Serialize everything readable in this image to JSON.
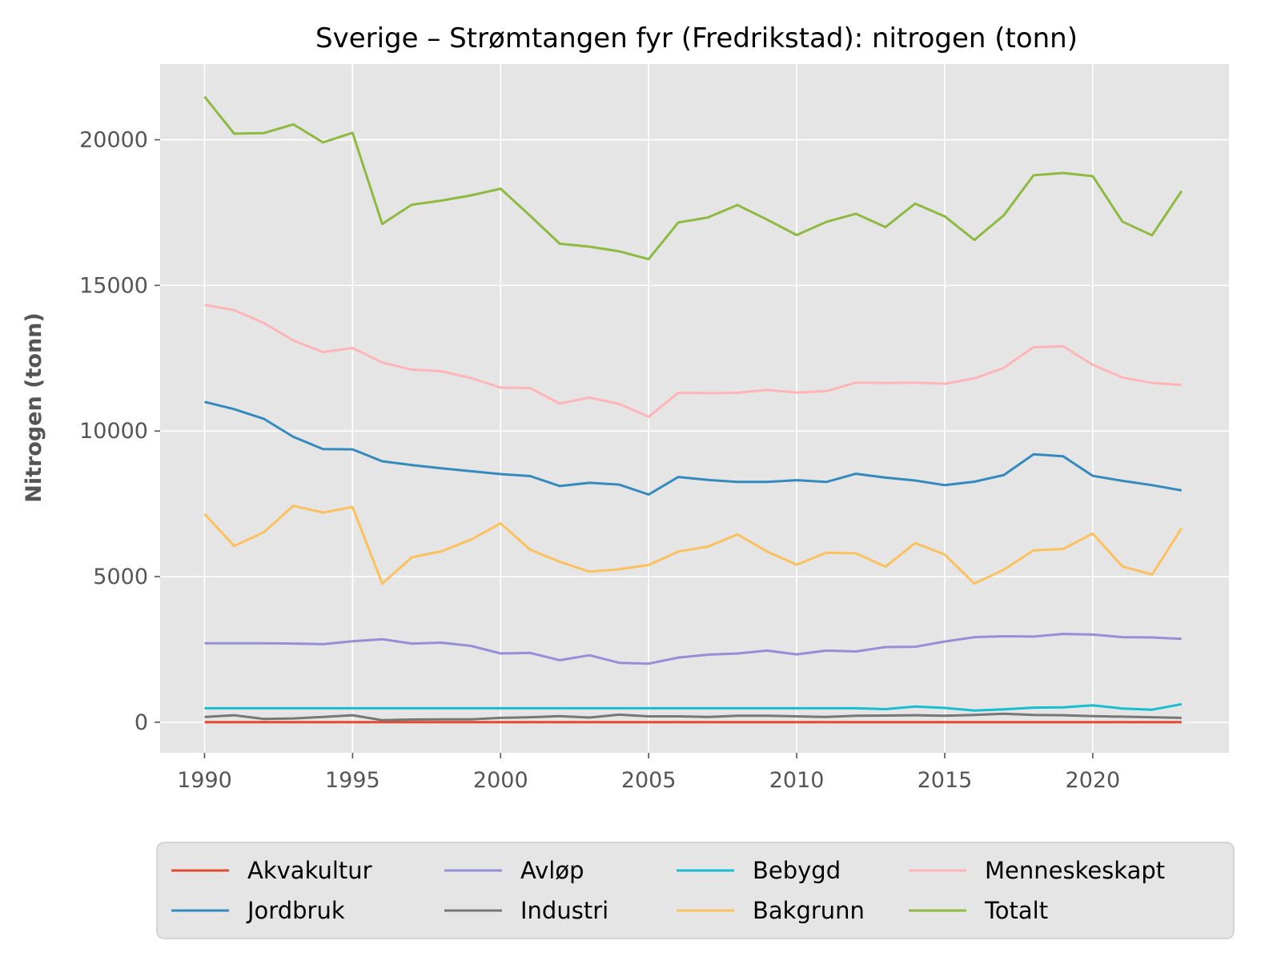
{
  "chart_data": {
    "type": "line",
    "title": "Sverige – Strømtangen fyr (Fredrikstad): nitrogen (tonn)",
    "xlabel": "",
    "ylabel": "Nitrogen (tonn)",
    "xlim": [
      1988.5,
      2024.6
    ],
    "ylim": [
      -1050,
      22600
    ],
    "x_ticks": [
      1990,
      1995,
      2000,
      2005,
      2010,
      2015,
      2020
    ],
    "y_ticks": [
      0,
      5000,
      10000,
      15000,
      20000
    ],
    "grid": true,
    "legend_position": "bottom",
    "x": [
      1990,
      1991,
      1992,
      1993,
      1994,
      1995,
      1996,
      1997,
      1998,
      1999,
      2000,
      2001,
      2002,
      2003,
      2004,
      2005,
      2006,
      2007,
      2008,
      2009,
      2010,
      2011,
      2012,
      2013,
      2014,
      2015,
      2016,
      2017,
      2018,
      2019,
      2020,
      2021,
      2022,
      2023
    ],
    "series": [
      {
        "name": "Akvakultur",
        "color": "#e24a33",
        "values": [
          0,
          0,
          0,
          0,
          0,
          0,
          0,
          0,
          0,
          0,
          0,
          0,
          0,
          0,
          0,
          0,
          0,
          0,
          0,
          0,
          0,
          0,
          0,
          0,
          0,
          0,
          0,
          0,
          0,
          0,
          0,
          0,
          0,
          0
        ]
      },
      {
        "name": "Jordbruk",
        "color": "#348abd",
        "values": [
          11000,
          10750,
          10420,
          9800,
          9380,
          9370,
          8960,
          8830,
          8720,
          8620,
          8520,
          8450,
          8110,
          8220,
          8160,
          7820,
          8420,
          8320,
          8250,
          8250,
          8310,
          8250,
          8530,
          8400,
          8300,
          8140,
          8260,
          8490,
          9200,
          9130,
          8460,
          8290,
          8140,
          7960
        ]
      },
      {
        "name": "Avløp",
        "color": "#988ed5",
        "values": [
          2710,
          2710,
          2710,
          2700,
          2680,
          2780,
          2850,
          2700,
          2730,
          2620,
          2360,
          2380,
          2130,
          2300,
          2040,
          2010,
          2220,
          2320,
          2360,
          2460,
          2330,
          2460,
          2430,
          2580,
          2590,
          2770,
          2920,
          2950,
          2940,
          3030,
          3010,
          2920,
          2910,
          2860
        ]
      },
      {
        "name": "Industri",
        "color": "#777777",
        "values": [
          180,
          240,
          110,
          130,
          180,
          240,
          70,
          90,
          100,
          100,
          150,
          170,
          210,
          160,
          260,
          200,
          200,
          180,
          220,
          220,
          200,
          180,
          220,
          230,
          240,
          220,
          250,
          290,
          250,
          240,
          210,
          190,
          170,
          150
        ]
      },
      {
        "name": "Bebygd",
        "color": "#17becf",
        "values": [
          480,
          480,
          480,
          480,
          480,
          480,
          480,
          480,
          480,
          480,
          480,
          480,
          480,
          480,
          480,
          480,
          480,
          480,
          480,
          480,
          480,
          480,
          480,
          450,
          540,
          490,
          400,
          440,
          500,
          510,
          580,
          470,
          430,
          620
        ]
      },
      {
        "name": "Bakgrunn",
        "color": "#fbc15e",
        "values": [
          7150,
          6050,
          6520,
          7430,
          7200,
          7390,
          4760,
          5660,
          5870,
          6270,
          6830,
          5920,
          5510,
          5170,
          5250,
          5400,
          5860,
          6030,
          6450,
          5860,
          5410,
          5820,
          5800,
          5340,
          6150,
          5760,
          4760,
          5240,
          5900,
          5950,
          6480,
          5350,
          5070,
          6660
        ]
      },
      {
        "name": "Menneskeskapt",
        "color": "#ffb5b8",
        "values": [
          14330,
          14150,
          13710,
          13110,
          12710,
          12850,
          12350,
          12110,
          12050,
          11820,
          11490,
          11470,
          10940,
          11150,
          10930,
          10490,
          11310,
          11300,
          11310,
          11410,
          11320,
          11370,
          11660,
          11650,
          11660,
          11620,
          11810,
          12170,
          12880,
          12910,
          12270,
          11840,
          11650,
          11580
        ]
      },
      {
        "name": "Totalt",
        "color": "#8eba42",
        "values": [
          21480,
          20210,
          20230,
          20530,
          19910,
          20240,
          17110,
          17770,
          17910,
          18090,
          18320,
          17390,
          16430,
          16330,
          16170,
          15900,
          17160,
          17330,
          17760,
          17260,
          16730,
          17180,
          17460,
          17000,
          17810,
          17370,
          16560,
          17410,
          18780,
          18860,
          18750,
          17190,
          16720,
          18240
        ]
      }
    ]
  }
}
